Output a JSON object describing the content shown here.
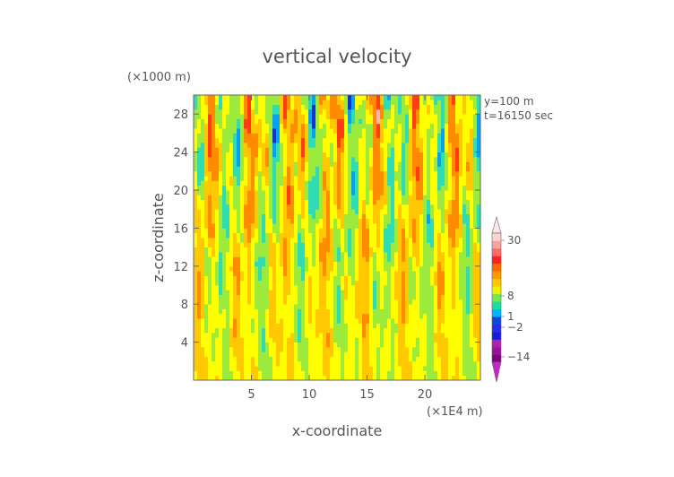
{
  "chart_data": {
    "type": "heatmap",
    "title": "vertical velocity",
    "xlabel": "x-coordinate",
    "ylabel": "z-coordinate",
    "x_unit": "(×1E4 m)",
    "y_unit": "(×1000 m)",
    "annotations": [
      "y=100 m",
      "t=16150 sec"
    ],
    "xlim": [
      0,
      24.8
    ],
    "ylim": [
      0,
      30
    ],
    "x_ticks": [
      5,
      10,
      15,
      20
    ],
    "y_ticks": [
      4,
      8,
      12,
      16,
      20,
      24,
      28
    ],
    "colorbar": {
      "placement": "right",
      "labels": [
        {
          "value": 30,
          "text": "30"
        },
        {
          "value": 8,
          "text": "8"
        },
        {
          "value": 1,
          "text": "1"
        },
        {
          "value": -2,
          "text": "−2"
        },
        {
          "value": -14,
          "text": "−14"
        }
      ],
      "bands": [
        {
          "color": "#800080"
        },
        {
          "color": "#9a109a"
        },
        {
          "color": "#b020b0"
        },
        {
          "color": "#1a1adc"
        },
        {
          "color": "#2030e8"
        },
        {
          "color": "#0a48e0"
        },
        {
          "color": "#00b4ff"
        },
        {
          "color": "#19e0a0"
        },
        {
          "color": "#78e650"
        },
        {
          "color": "#f0f000"
        },
        {
          "color": "#ffc800"
        },
        {
          "color": "#ff9a00"
        },
        {
          "color": "#ff6a00"
        },
        {
          "color": "#ff2020"
        },
        {
          "color": "#ff6a6a"
        },
        {
          "color": "#ffa0a0"
        },
        {
          "color": "#ffd2d2"
        }
      ]
    },
    "field_colors": [
      "#1432d2",
      "#0aa0f0",
      "#30dcb4",
      "#9cea3c",
      "#ffff00",
      "#ffc800",
      "#ff8c00",
      "#ff3c14",
      "#ffb4b4"
    ]
  }
}
